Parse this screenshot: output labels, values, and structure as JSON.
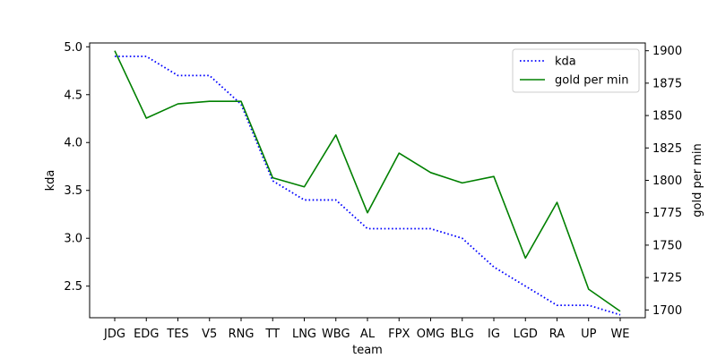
{
  "chart_data": {
    "type": "line",
    "title": "",
    "xlabel": "team",
    "ylabel": "kda",
    "y2label": "gold per min",
    "categories": [
      "JDG",
      "EDG",
      "TES",
      "V5",
      "RNG",
      "TT",
      "LNG",
      "WBG",
      "AL",
      "FPX",
      "OMG",
      "BLG",
      "IG",
      "LGD",
      "RA",
      "UP",
      "WE"
    ],
    "series": [
      {
        "name": "kda",
        "axis": "left",
        "color": "#0000ff",
        "style": "dotted",
        "values": [
          4.9,
          4.9,
          4.7,
          4.7,
          4.4,
          3.6,
          3.4,
          3.4,
          3.1,
          3.1,
          3.1,
          3.0,
          2.7,
          2.5,
          2.3,
          2.3,
          2.2
        ]
      },
      {
        "name": "gold per min",
        "axis": "right",
        "color": "#008000",
        "style": "solid",
        "values": [
          1900,
          1848,
          1859,
          1861,
          1861,
          1802,
          1795,
          1835,
          1775,
          1821,
          1806,
          1798,
          1803,
          1740,
          1783,
          1716,
          1699
        ]
      }
    ],
    "ylim": [
      2.17,
      5.04
    ],
    "yticks": [
      2.5,
      3.0,
      3.5,
      4.0,
      4.5,
      5.0
    ],
    "y2lim": [
      1694,
      1906
    ],
    "y2ticks": [
      1700,
      1725,
      1750,
      1775,
      1800,
      1825,
      1850,
      1875,
      1900
    ],
    "grid": false,
    "legend_position": "upper-right"
  }
}
